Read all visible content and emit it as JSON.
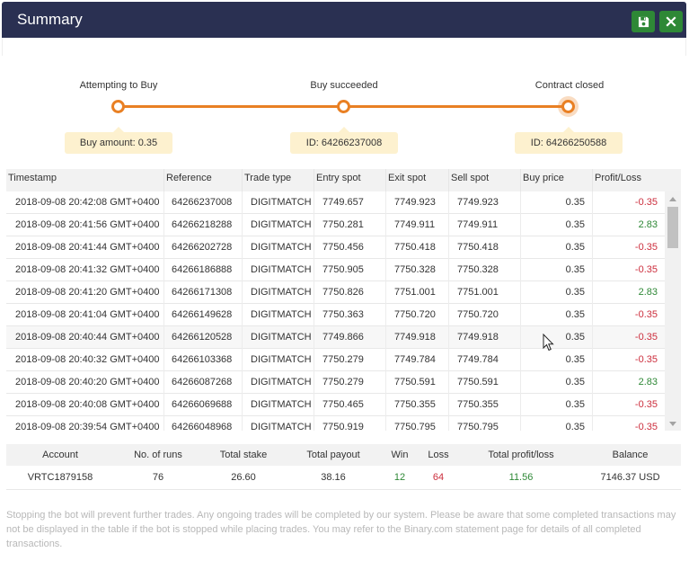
{
  "window": {
    "title": "Summary"
  },
  "progress": {
    "steps": [
      {
        "label": "Attempting to Buy",
        "tip": "Buy amount: 0.35"
      },
      {
        "label": "Buy succeeded",
        "tip": "ID: 64266237008"
      },
      {
        "label": "Contract closed",
        "tip": "ID: 64266250588"
      }
    ]
  },
  "trades": {
    "columns": [
      "Timestamp",
      "Reference",
      "Trade type",
      "Entry spot",
      "Exit spot",
      "Sell spot",
      "Buy price",
      "Profit/Loss"
    ],
    "rows": [
      {
        "timestamp": "2018-09-08 20:42:08 GMT+0400",
        "reference": "64266237008",
        "type": "DIGITMATCH",
        "entry": "7749.657",
        "exit": "7749.923",
        "sell": "7749.923",
        "buy": "0.35",
        "pl": "-0.35"
      },
      {
        "timestamp": "2018-09-08 20:41:56 GMT+0400",
        "reference": "64266218288",
        "type": "DIGITMATCH",
        "entry": "7750.281",
        "exit": "7749.911",
        "sell": "7749.911",
        "buy": "0.35",
        "pl": "2.83"
      },
      {
        "timestamp": "2018-09-08 20:41:44 GMT+0400",
        "reference": "64266202728",
        "type": "DIGITMATCH",
        "entry": "7750.456",
        "exit": "7750.418",
        "sell": "7750.418",
        "buy": "0.35",
        "pl": "-0.35"
      },
      {
        "timestamp": "2018-09-08 20:41:32 GMT+0400",
        "reference": "64266186888",
        "type": "DIGITMATCH",
        "entry": "7750.905",
        "exit": "7750.328",
        "sell": "7750.328",
        "buy": "0.35",
        "pl": "-0.35"
      },
      {
        "timestamp": "2018-09-08 20:41:20 GMT+0400",
        "reference": "64266171308",
        "type": "DIGITMATCH",
        "entry": "7750.826",
        "exit": "7751.001",
        "sell": "7751.001",
        "buy": "0.35",
        "pl": "2.83"
      },
      {
        "timestamp": "2018-09-08 20:41:04 GMT+0400",
        "reference": "64266149628",
        "type": "DIGITMATCH",
        "entry": "7750.363",
        "exit": "7750.720",
        "sell": "7750.720",
        "buy": "0.35",
        "pl": "-0.35"
      },
      {
        "timestamp": "2018-09-08 20:40:44 GMT+0400",
        "reference": "64266120528",
        "type": "DIGITMATCH",
        "entry": "7749.866",
        "exit": "7749.918",
        "sell": "7749.918",
        "buy": "0.35",
        "pl": "-0.35"
      },
      {
        "timestamp": "2018-09-08 20:40:32 GMT+0400",
        "reference": "64266103368",
        "type": "DIGITMATCH",
        "entry": "7750.279",
        "exit": "7749.784",
        "sell": "7749.784",
        "buy": "0.35",
        "pl": "-0.35"
      },
      {
        "timestamp": "2018-09-08 20:40:20 GMT+0400",
        "reference": "64266087268",
        "type": "DIGITMATCH",
        "entry": "7750.279",
        "exit": "7750.591",
        "sell": "7750.591",
        "buy": "0.35",
        "pl": "2.83"
      },
      {
        "timestamp": "2018-09-08 20:40:08 GMT+0400",
        "reference": "64266069688",
        "type": "DIGITMATCH",
        "entry": "7750.465",
        "exit": "7750.355",
        "sell": "7750.355",
        "buy": "0.35",
        "pl": "-0.35"
      },
      {
        "timestamp": "2018-09-08 20:39:54 GMT+0400",
        "reference": "64266048968",
        "type": "DIGITMATCH",
        "entry": "7750.919",
        "exit": "7750.795",
        "sell": "7750.795",
        "buy": "0.35",
        "pl": "-0.35"
      }
    ]
  },
  "summary": {
    "columns": [
      "Account",
      "No. of runs",
      "Total stake",
      "Total payout",
      "Win",
      "Loss",
      "Total profit/loss",
      "Balance"
    ],
    "values": [
      "VRTC1879158",
      "76",
      "26.60",
      "38.16",
      "12",
      "64",
      "11.56",
      "7146.37 USD"
    ]
  },
  "note": "Stopping the bot will prevent further trades. Any ongoing trades will be completed by our system. Please be aware that some completed transactions may not be displayed in the table if the bot is stopped while placing trades. You may refer to the Binary.com statement page for details of all completed transactions.",
  "icons": {
    "save": "floppy-disk-icon",
    "close": "close-icon",
    "cursor": "mouse-pointer-icon"
  },
  "colors": {
    "header": "#2a3052",
    "button": "#2e8836",
    "accent": "#e98024",
    "tip": "#fdf1cf",
    "profit": "#2e8836",
    "loss": "#cc2e3d"
  }
}
